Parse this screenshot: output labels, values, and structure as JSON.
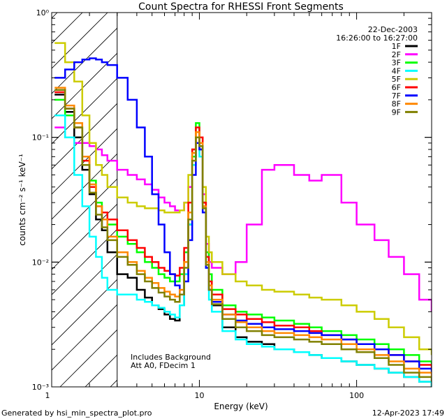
{
  "chart_data": {
    "type": "line",
    "title": "Count Spectra for RHESSI Front Segments",
    "xlabel": "Energy (keV)",
    "ylabel": "counts cm⁻² s⁻¹ keV⁻¹",
    "xscale": "log",
    "yscale": "log",
    "xlim": [
      1.15,
      300
    ],
    "ylim": [
      0.001,
      1
    ],
    "x_ticks": [
      {
        "value": 1,
        "label": "1"
      },
      {
        "value": 10,
        "label": "10"
      },
      {
        "value": 100,
        "label": "100"
      }
    ],
    "y_ticks": [
      {
        "value": 1,
        "label": "10⁰"
      },
      {
        "value": 0.1,
        "label": "10⁻¹"
      },
      {
        "value": 0.01,
        "label": "10⁻²"
      },
      {
        "value": 0.001,
        "label": "10⁻³"
      }
    ],
    "date": "22-Dec-2003",
    "time_range": "16:26:00 to 16:27:00",
    "notes": [
      "Includes Background",
      "Att A0, FDecim 1"
    ],
    "hatched_region_below_keV": 3,
    "series": [
      {
        "name": "1F",
        "color": "#000000",
        "x": [
          1.2,
          1.4,
          1.6,
          1.8,
          2.0,
          2.2,
          2.4,
          2.6,
          3.0,
          3.5,
          4.0,
          4.5,
          5.0,
          5.5,
          6.0,
          6.5,
          7.0,
          7.5,
          8.0,
          8.5,
          9.0,
          9.5,
          10.0,
          10.5,
          11.0,
          11.5,
          12,
          14,
          17,
          20,
          25,
          30,
          40,
          50,
          60,
          80,
          100,
          130,
          160,
          200,
          250,
          300
        ],
        "y": [
          0.22,
          0.16,
          0.1,
          0.055,
          0.035,
          0.022,
          0.018,
          0.012,
          0.008,
          0.0075,
          0.006,
          0.0052,
          0.0045,
          0.0042,
          0.0038,
          0.0035,
          0.0034,
          0.0045,
          0.008,
          0.02,
          0.07,
          0.09,
          0.08,
          0.03,
          0.01,
          0.006,
          0.0045,
          0.003,
          0.0025,
          0.0023,
          0.0022,
          0.002,
          0.0019,
          0.0018,
          0.0017,
          0.0016,
          0.0015,
          0.0014,
          0.0013,
          0.0012,
          0.0011,
          0.001
        ]
      },
      {
        "name": "2F",
        "color": "#ff00ff",
        "x": [
          1.2,
          1.4,
          1.6,
          1.8,
          2.0,
          2.2,
          2.4,
          2.6,
          3.0,
          3.5,
          4.0,
          4.5,
          5.0,
          5.5,
          6.0,
          6.5,
          7.0,
          7.5,
          8.0,
          8.5,
          9.0,
          9.5,
          10.0,
          10.5,
          11.0,
          11.5,
          12,
          14,
          17,
          20,
          25,
          30,
          40,
          50,
          60,
          80,
          100,
          130,
          160,
          200,
          250,
          300
        ],
        "y": [
          0.12,
          0.1,
          0.09,
          0.09,
          0.085,
          0.08,
          0.072,
          0.065,
          0.055,
          0.05,
          0.046,
          0.042,
          0.038,
          0.033,
          0.03,
          0.028,
          0.026,
          0.026,
          0.03,
          0.04,
          0.07,
          0.1,
          0.09,
          0.035,
          0.014,
          0.01,
          0.009,
          0.008,
          0.01,
          0.02,
          0.055,
          0.06,
          0.05,
          0.045,
          0.05,
          0.03,
          0.02,
          0.015,
          0.011,
          0.008,
          0.005,
          0.004
        ]
      },
      {
        "name": "3F",
        "color": "#00ff00",
        "x": [
          1.2,
          1.4,
          1.6,
          1.8,
          2.0,
          2.2,
          2.4,
          2.6,
          3.0,
          3.5,
          4.0,
          4.5,
          5.0,
          5.5,
          6.0,
          6.5,
          7.0,
          7.5,
          8.0,
          8.5,
          9.0,
          9.5,
          10.0,
          10.5,
          11.0,
          11.5,
          12,
          14,
          17,
          20,
          25,
          30,
          40,
          50,
          60,
          80,
          100,
          130,
          160,
          200,
          250,
          300
        ],
        "y": [
          0.2,
          0.15,
          0.12,
          0.07,
          0.045,
          0.03,
          0.025,
          0.02,
          0.016,
          0.014,
          0.012,
          0.01,
          0.009,
          0.008,
          0.0075,
          0.007,
          0.007,
          0.008,
          0.012,
          0.025,
          0.07,
          0.13,
          0.1,
          0.03,
          0.012,
          0.008,
          0.006,
          0.0045,
          0.004,
          0.0038,
          0.0036,
          0.0034,
          0.0032,
          0.003,
          0.0028,
          0.0026,
          0.0024,
          0.0022,
          0.002,
          0.0018,
          0.0016,
          0.0015
        ]
      },
      {
        "name": "4F",
        "color": "#00ffff",
        "x": [
          1.2,
          1.4,
          1.6,
          1.8,
          2.0,
          2.2,
          2.4,
          2.6,
          3.0,
          3.5,
          4.0,
          4.5,
          5.0,
          5.5,
          6.0,
          6.5,
          7.0,
          7.5,
          8.0,
          8.5,
          9.0,
          9.5,
          10.0,
          10.5,
          11.0,
          11.5,
          12,
          14,
          17,
          20,
          25,
          30,
          40,
          50,
          60,
          80,
          100,
          130,
          160,
          200,
          250,
          300
        ],
        "y": [
          0.15,
          0.1,
          0.05,
          0.028,
          0.016,
          0.011,
          0.0075,
          0.006,
          0.0055,
          0.0055,
          0.005,
          0.0048,
          0.0045,
          0.0043,
          0.004,
          0.0038,
          0.0036,
          0.0045,
          0.008,
          0.02,
          0.06,
          0.09,
          0.07,
          0.025,
          0.009,
          0.005,
          0.004,
          0.0028,
          0.0024,
          0.0022,
          0.0021,
          0.002,
          0.0019,
          0.0018,
          0.0017,
          0.0016,
          0.0015,
          0.0014,
          0.0013,
          0.0012,
          0.0011,
          0.001
        ]
      },
      {
        "name": "5F",
        "color": "#cccc00",
        "x": [
          1.2,
          1.4,
          1.6,
          1.8,
          2.0,
          2.2,
          2.4,
          2.6,
          3.0,
          3.5,
          4.0,
          4.5,
          5.0,
          5.5,
          6.0,
          6.5,
          7.0,
          7.5,
          8.0,
          8.5,
          9.0,
          9.5,
          10.0,
          10.5,
          11.0,
          11.5,
          12,
          14,
          17,
          20,
          25,
          30,
          40,
          50,
          60,
          80,
          100,
          130,
          160,
          200,
          250,
          300
        ],
        "y": [
          0.57,
          0.4,
          0.28,
          0.15,
          0.09,
          0.06,
          0.05,
          0.04,
          0.033,
          0.03,
          0.028,
          0.027,
          0.027,
          0.026,
          0.025,
          0.025,
          0.025,
          0.026,
          0.03,
          0.05,
          0.08,
          0.11,
          0.1,
          0.04,
          0.016,
          0.012,
          0.01,
          0.008,
          0.007,
          0.0065,
          0.006,
          0.0058,
          0.0055,
          0.0052,
          0.005,
          0.0045,
          0.004,
          0.0035,
          0.003,
          0.0025,
          0.002,
          0.0018
        ]
      },
      {
        "name": "6F",
        "color": "#ff0000",
        "x": [
          1.2,
          1.4,
          1.6,
          1.8,
          2.0,
          2.2,
          2.4,
          2.6,
          3.0,
          3.5,
          4.0,
          4.5,
          5.0,
          5.5,
          6.0,
          6.5,
          7.0,
          7.5,
          8.0,
          8.5,
          9.0,
          9.5,
          10.0,
          10.5,
          11.0,
          11.5,
          12,
          14,
          17,
          20,
          25,
          30,
          40,
          50,
          60,
          80,
          100,
          130,
          160,
          200,
          250,
          300
        ],
        "y": [
          0.23,
          0.17,
          0.12,
          0.065,
          0.04,
          0.028,
          0.025,
          0.022,
          0.018,
          0.015,
          0.013,
          0.011,
          0.01,
          0.009,
          0.0085,
          0.008,
          0.0078,
          0.009,
          0.013,
          0.03,
          0.08,
          0.12,
          0.1,
          0.03,
          0.011,
          0.007,
          0.0055,
          0.0042,
          0.0038,
          0.0035,
          0.0033,
          0.0031,
          0.003,
          0.0028,
          0.0026,
          0.0024,
          0.0022,
          0.002,
          0.0018,
          0.0016,
          0.0015,
          0.0014
        ]
      },
      {
        "name": "7F",
        "color": "#0000ff",
        "x": [
          1.2,
          1.4,
          1.6,
          1.8,
          2.0,
          2.2,
          2.4,
          2.6,
          3.0,
          3.5,
          4.0,
          4.5,
          5.0,
          5.5,
          6.0,
          6.5,
          7.0,
          7.5,
          8.0,
          8.5,
          9.0,
          9.5,
          10.0,
          10.5,
          11.0,
          11.5,
          12,
          14,
          17,
          20,
          25,
          30,
          40,
          50,
          60,
          80,
          100,
          130,
          160,
          200,
          250,
          300
        ],
        "y": [
          0.3,
          0.35,
          0.4,
          0.42,
          0.43,
          0.42,
          0.4,
          0.38,
          0.3,
          0.2,
          0.12,
          0.07,
          0.035,
          0.02,
          0.012,
          0.008,
          0.0065,
          0.0055,
          0.007,
          0.015,
          0.05,
          0.09,
          0.08,
          0.025,
          0.009,
          0.006,
          0.0048,
          0.0038,
          0.0034,
          0.0032,
          0.003,
          0.0029,
          0.0028,
          0.0027,
          0.0026,
          0.0024,
          0.0022,
          0.002,
          0.0018,
          0.0016,
          0.0014,
          0.0013
        ]
      },
      {
        "name": "8F",
        "color": "#ff8800",
        "x": [
          1.2,
          1.4,
          1.6,
          1.8,
          2.0,
          2.2,
          2.4,
          2.6,
          3.0,
          3.5,
          4.0,
          4.5,
          5.0,
          5.5,
          6.0,
          6.5,
          7.0,
          7.5,
          8.0,
          8.5,
          9.0,
          9.5,
          10.0,
          10.5,
          11.0,
          11.5,
          12,
          14,
          17,
          20,
          25,
          30,
          40,
          50,
          60,
          80,
          100,
          130,
          160,
          200,
          250,
          300
        ],
        "y": [
          0.25,
          0.18,
          0.13,
          0.07,
          0.042,
          0.028,
          0.022,
          0.016,
          0.012,
          0.01,
          0.0085,
          0.0075,
          0.0068,
          0.0062,
          0.0058,
          0.0055,
          0.0053,
          0.006,
          0.01,
          0.025,
          0.075,
          0.11,
          0.09,
          0.028,
          0.01,
          0.0065,
          0.005,
          0.0038,
          0.0033,
          0.003,
          0.0028,
          0.0027,
          0.0026,
          0.0025,
          0.0024,
          0.0022,
          0.002,
          0.0018,
          0.0016,
          0.0014,
          0.0013,
          0.0012
        ]
      },
      {
        "name": "9F",
        "color": "#808000",
        "x": [
          1.2,
          1.4,
          1.6,
          1.8,
          2.0,
          2.2,
          2.4,
          2.6,
          3.0,
          3.5,
          4.0,
          4.5,
          5.0,
          5.5,
          6.0,
          6.5,
          7.0,
          7.5,
          8.0,
          8.5,
          9.0,
          9.5,
          10.0,
          10.5,
          11.0,
          11.5,
          12,
          14,
          17,
          20,
          25,
          30,
          40,
          50,
          60,
          80,
          100,
          130,
          160,
          200,
          250,
          300
        ],
        "y": [
          0.24,
          0.17,
          0.12,
          0.06,
          0.036,
          0.024,
          0.019,
          0.015,
          0.011,
          0.0095,
          0.008,
          0.007,
          0.0062,
          0.0057,
          0.0053,
          0.005,
          0.0048,
          0.0055,
          0.009,
          0.022,
          0.065,
          0.1,
          0.085,
          0.027,
          0.0095,
          0.006,
          0.0046,
          0.0035,
          0.003,
          0.0028,
          0.0026,
          0.0025,
          0.0024,
          0.0023,
          0.0022,
          0.002,
          0.0019,
          0.0017,
          0.0015,
          0.0013,
          0.0012,
          0.0011
        ]
      }
    ]
  },
  "footer": {
    "generated_by": "Generated by hsi_min_spectra_plot.pro",
    "timestamp": "12-Apr-2023 17:49"
  }
}
